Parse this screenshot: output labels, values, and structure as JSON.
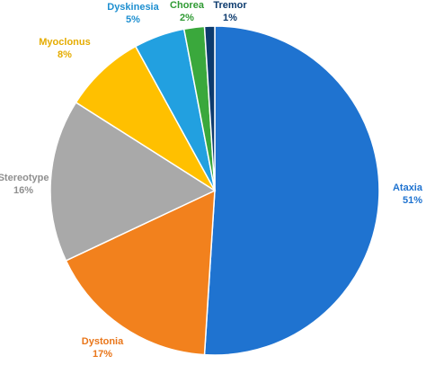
{
  "chart_data": {
    "type": "pie",
    "title": "",
    "slices": [
      {
        "name": "Ataxia",
        "pct_label": "51%",
        "value": 51,
        "color": "#1f73d0",
        "label_color": "#1f73d0"
      },
      {
        "name": "Dystonia",
        "pct_label": "17%",
        "value": 17,
        "color": "#f2811d",
        "label_color": "#e9761a"
      },
      {
        "name": "Stereotype",
        "pct_label": "16%",
        "value": 16,
        "color": "#a9a9a9",
        "label_color": "#8f8f8f"
      },
      {
        "name": "Myoclonus",
        "pct_label": "8%",
        "value": 8,
        "color": "#ffc000",
        "label_color": "#e5ac00"
      },
      {
        "name": "Dyskinesia",
        "pct_label": "5%",
        "value": 5,
        "color": "#22a0e0",
        "label_color": "#1e8fd0"
      },
      {
        "name": "Chorea",
        "pct_label": "2%",
        "value": 2,
        "color": "#3aa83c",
        "label_color": "#2f9a33"
      },
      {
        "name": "Tremor",
        "pct_label": "1%",
        "value": 1,
        "color": "#0d3b6e",
        "label_color": "#0d3b6e"
      }
    ]
  }
}
